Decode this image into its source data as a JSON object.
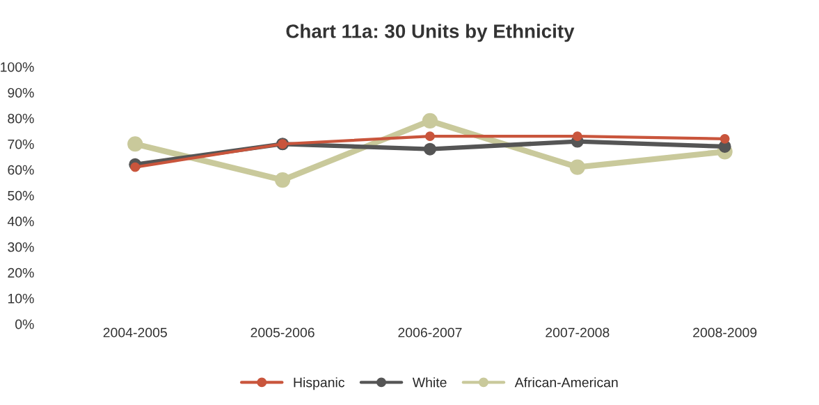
{
  "chart_data": {
    "type": "line",
    "title": "Chart 11a: 30 Units by Ethnicity",
    "categories": [
      "2004-2005",
      "2005-2006",
      "2006-2007",
      "2007-2008",
      "2008-2009"
    ],
    "series": [
      {
        "name": "Hispanic",
        "color": "#c9553c",
        "values": [
          61,
          70,
          73,
          73,
          72
        ]
      },
      {
        "name": "White",
        "color": "#555555",
        "values": [
          62,
          70,
          68,
          71,
          69
        ]
      },
      {
        "name": "African-American",
        "color": "#c9c99b",
        "values": [
          70,
          56,
          79,
          61,
          67
        ]
      }
    ],
    "ylim": [
      0,
      100
    ],
    "yticks": [
      {
        "value": 0,
        "label": "0%"
      },
      {
        "value": 10,
        "label": "10%"
      },
      {
        "value": 20,
        "label": "20%"
      },
      {
        "value": 30,
        "label": "30%"
      },
      {
        "value": 40,
        "label": "40%"
      },
      {
        "value": 50,
        "label": "50%"
      },
      {
        "value": 60,
        "label": "60%"
      },
      {
        "value": 70,
        "label": "70%"
      },
      {
        "value": 80,
        "label": "80%"
      },
      {
        "value": 90,
        "label": "90%"
      },
      {
        "value": 100,
        "label": "100%"
      }
    ],
    "marker": "circle",
    "line_style": "solid",
    "grid": false,
    "legend": "bottom"
  }
}
